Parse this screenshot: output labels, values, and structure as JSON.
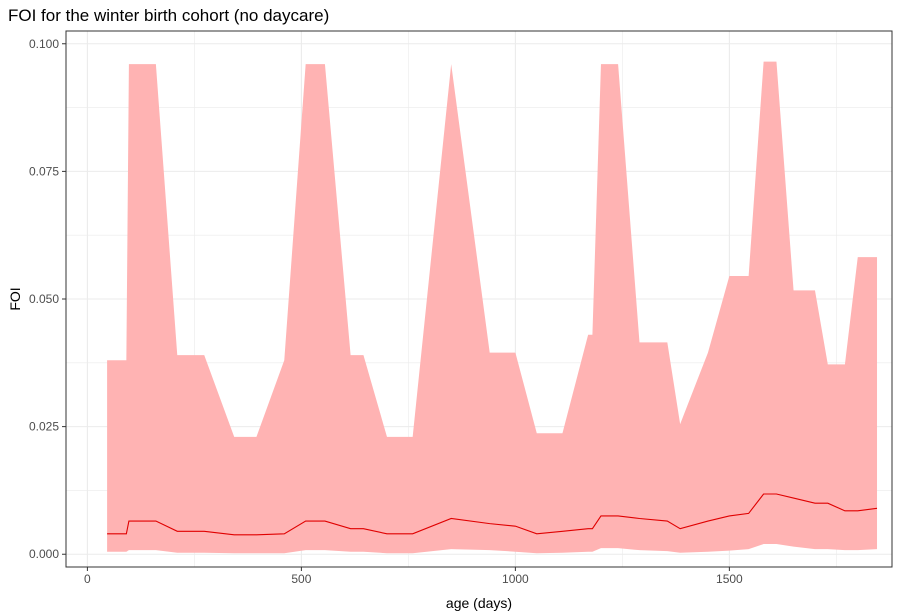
{
  "chart_data": {
    "type": "area",
    "title": "FOI for the winter birth cohort (no daycare)",
    "xlabel": "age (days)",
    "ylabel": "FOI",
    "xlim": [
      -50,
      1880
    ],
    "ylim": [
      -0.0025,
      0.1025
    ],
    "xticks": [
      0,
      500,
      1000,
      1500
    ],
    "yticks": [
      0.0,
      0.025,
      0.05,
      0.075,
      0.1
    ],
    "xtick_labels": [
      "0",
      "500",
      "1000",
      "1500"
    ],
    "ytick_labels": [
      "0.000",
      "0.025",
      "0.050",
      "0.075",
      "0.100"
    ],
    "grid": true,
    "colors": {
      "ribbon": "#FFB3B3",
      "line": "#E00000",
      "grid": "#EBEBEB",
      "border": "#333333"
    },
    "series": [
      {
        "x": [
          46,
          91,
          97,
          160,
          210,
          273,
          343,
          395,
          460,
          510,
          555,
          615,
          645,
          700,
          760,
          850,
          940,
          1000,
          1050,
          1110,
          1170,
          1180,
          1200,
          1240,
          1290,
          1355,
          1385,
          1450,
          1500,
          1545,
          1580,
          1610,
          1650,
          1700,
          1730,
          1770,
          1800,
          1845
        ],
        "y": [
          0.004,
          0.004,
          0.0065,
          0.0065,
          0.0045,
          0.0045,
          0.0038,
          0.0038,
          0.004,
          0.0065,
          0.0065,
          0.005,
          0.005,
          0.004,
          0.004,
          0.007,
          0.006,
          0.0055,
          0.004,
          0.0045,
          0.005,
          0.005,
          0.0075,
          0.0075,
          0.007,
          0.0065,
          0.005,
          0.0065,
          0.0075,
          0.008,
          0.0118,
          0.0118,
          0.011,
          0.01,
          0.01,
          0.0085,
          0.0085,
          0.009
        ],
        "lower": [
          0.0005,
          0.0005,
          0.0008,
          0.0008,
          0.0003,
          0.0003,
          0.0002,
          0.0002,
          0.0002,
          0.0008,
          0.0008,
          0.0005,
          0.0005,
          0.0002,
          0.0002,
          0.001,
          0.0008,
          0.0005,
          0.0002,
          0.0003,
          0.0005,
          0.0005,
          0.0012,
          0.0012,
          0.0008,
          0.0006,
          0.0003,
          0.0005,
          0.0007,
          0.001,
          0.002,
          0.002,
          0.0015,
          0.001,
          0.001,
          0.0008,
          0.0008,
          0.001
        ],
        "upper": [
          0.038,
          0.038,
          0.096,
          0.096,
          0.039,
          0.039,
          0.023,
          0.023,
          0.038,
          0.096,
          0.096,
          0.039,
          0.039,
          0.023,
          0.023,
          0.096,
          0.0395,
          0.0395,
          0.0237,
          0.0237,
          0.043,
          0.043,
          0.096,
          0.096,
          0.0415,
          0.0415,
          0.0255,
          0.0395,
          0.0545,
          0.0545,
          0.0965,
          0.0965,
          0.0517,
          0.0517,
          0.0372,
          0.0372,
          0.0582,
          0.0582
        ]
      }
    ]
  }
}
